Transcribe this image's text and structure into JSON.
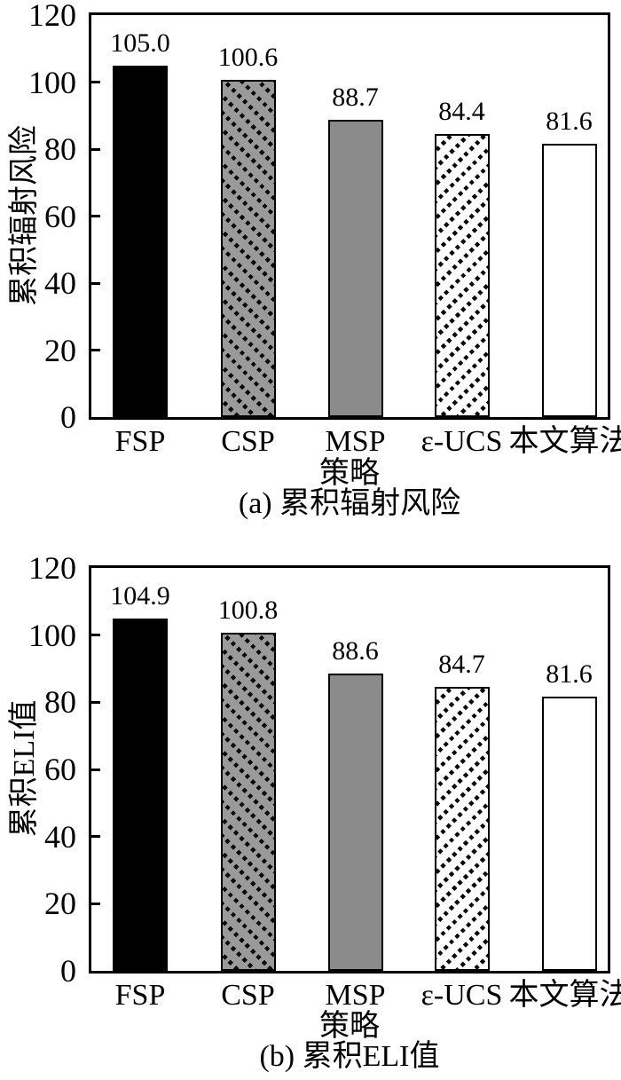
{
  "colors": {
    "background": "#ffffff",
    "axis": "#000000",
    "text": "#000000",
    "bar_black": "#000000",
    "bar_gray": "#8b8b8b",
    "bar_hatch_gray_bg": "#9a9a9a",
    "bar_white": "#ffffff",
    "hatch_line": "#0a0a0a"
  },
  "chart_data": [
    {
      "type": "bar",
      "categories": [
        "FSP",
        "CSP",
        "MSP",
        "ε-UCS",
        "本文算法"
      ],
      "values": [
        105.0,
        100.6,
        88.7,
        84.4,
        81.6
      ],
      "value_labels": [
        "105.0",
        "100.6",
        "88.7",
        "84.4",
        "81.6"
      ],
      "bar_fills": [
        "black",
        "hatch-backslash-gray",
        "gray",
        "hatch-slash-white",
        "white"
      ],
      "title": "(a) 累积辐射风险",
      "xlabel": "策略",
      "ylabel": "累积辐射风险",
      "ylim": [
        0,
        120
      ],
      "yticks": [
        0,
        20,
        40,
        60,
        80,
        100,
        120
      ],
      "grid": false,
      "legend": "none"
    },
    {
      "type": "bar",
      "categories": [
        "FSP",
        "CSP",
        "MSP",
        "ε-UCS",
        "本文算法"
      ],
      "values": [
        104.9,
        100.8,
        88.6,
        84.7,
        81.6
      ],
      "value_labels": [
        "104.9",
        "100.8",
        "88.6",
        "84.7",
        "81.6"
      ],
      "bar_fills": [
        "black",
        "hatch-backslash-gray",
        "gray",
        "hatch-slash-white",
        "white"
      ],
      "title": "(b) 累积ELI值",
      "xlabel": "策略",
      "ylabel": "累积ELI值",
      "ylim": [
        0,
        120
      ],
      "yticks": [
        0,
        20,
        40,
        60,
        80,
        100,
        120
      ],
      "grid": false,
      "legend": "none"
    }
  ]
}
